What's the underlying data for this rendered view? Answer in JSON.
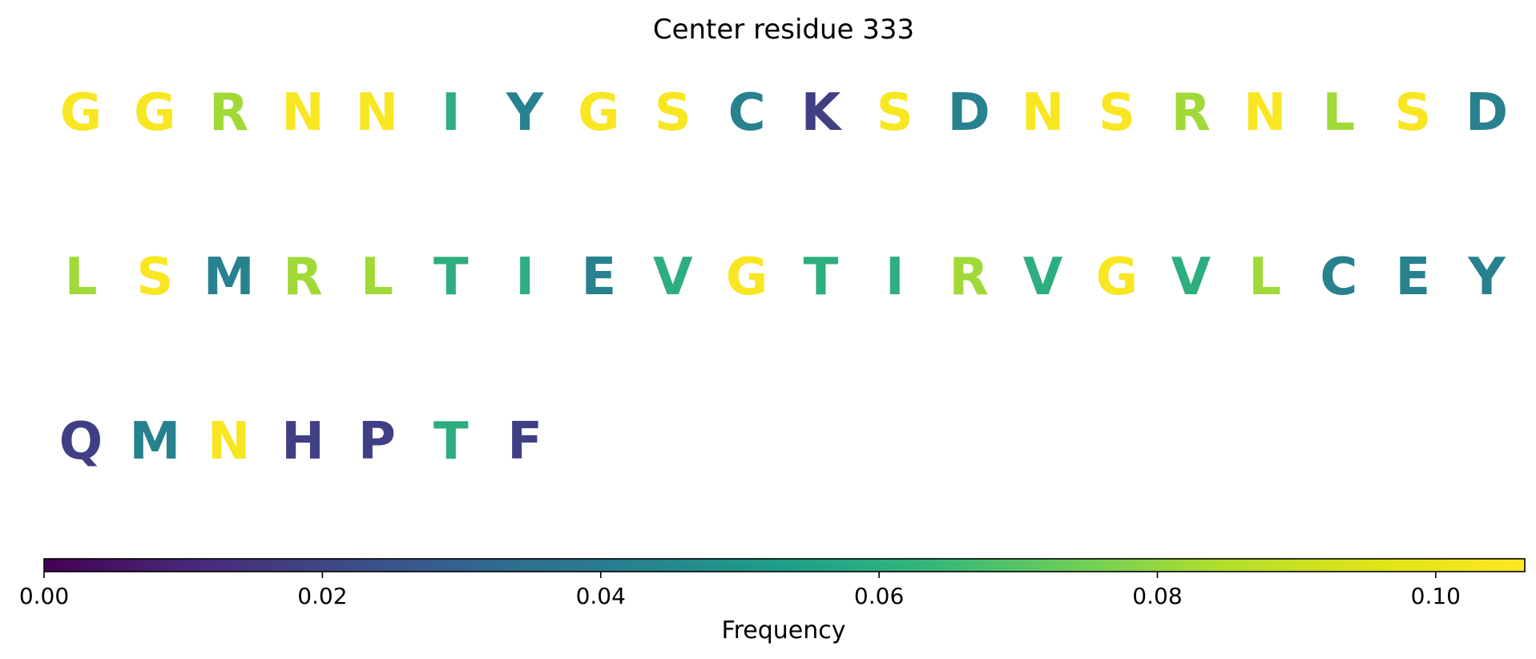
{
  "chart_data": {
    "type": "heatmap",
    "title": "Center residue 333",
    "rows": [
      [
        {
          "letter": "G",
          "value": 0.105
        },
        {
          "letter": "G",
          "value": 0.105
        },
        {
          "letter": "R",
          "value": 0.082
        },
        {
          "letter": "N",
          "value": 0.105
        },
        {
          "letter": "N",
          "value": 0.105
        },
        {
          "letter": "I",
          "value": 0.06
        },
        {
          "letter": "Y",
          "value": 0.042
        },
        {
          "letter": "G",
          "value": 0.105
        },
        {
          "letter": "S",
          "value": 0.105
        },
        {
          "letter": "C",
          "value": 0.042
        },
        {
          "letter": "K",
          "value": 0.018
        },
        {
          "letter": "S",
          "value": 0.105
        },
        {
          "letter": "D",
          "value": 0.042
        },
        {
          "letter": "N",
          "value": 0.105
        },
        {
          "letter": "S",
          "value": 0.105
        },
        {
          "letter": "R",
          "value": 0.082
        },
        {
          "letter": "N",
          "value": 0.105
        },
        {
          "letter": "L",
          "value": 0.082
        },
        {
          "letter": "S",
          "value": 0.105
        },
        {
          "letter": "D",
          "value": 0.042
        }
      ],
      [
        {
          "letter": "L",
          "value": 0.082
        },
        {
          "letter": "S",
          "value": 0.105
        },
        {
          "letter": "M",
          "value": 0.042
        },
        {
          "letter": "R",
          "value": 0.082
        },
        {
          "letter": "L",
          "value": 0.082
        },
        {
          "letter": "T",
          "value": 0.06
        },
        {
          "letter": "I",
          "value": 0.06
        },
        {
          "letter": "E",
          "value": 0.042
        },
        {
          "letter": "V",
          "value": 0.06
        },
        {
          "letter": "G",
          "value": 0.105
        },
        {
          "letter": "T",
          "value": 0.06
        },
        {
          "letter": "I",
          "value": 0.06
        },
        {
          "letter": "R",
          "value": 0.082
        },
        {
          "letter": "V",
          "value": 0.06
        },
        {
          "letter": "G",
          "value": 0.105
        },
        {
          "letter": "V",
          "value": 0.06
        },
        {
          "letter": "L",
          "value": 0.082
        },
        {
          "letter": "C",
          "value": 0.042
        },
        {
          "letter": "E",
          "value": 0.042
        },
        {
          "letter": "Y",
          "value": 0.042
        }
      ],
      [
        {
          "letter": "Q",
          "value": 0.018
        },
        {
          "letter": "M",
          "value": 0.042
        },
        {
          "letter": "N",
          "value": 0.105
        },
        {
          "letter": "H",
          "value": 0.018
        },
        {
          "letter": "P",
          "value": 0.018
        },
        {
          "letter": "T",
          "value": 0.06
        },
        {
          "letter": "F",
          "value": 0.018
        }
      ]
    ],
    "colorbar": {
      "label": "Frequency",
      "range": [
        0,
        0.1064
      ],
      "colormap": "viridis",
      "ticks": [
        0,
        0.02,
        0.04,
        0.06,
        0.08,
        0.1
      ],
      "tick_labels": [
        "0.00",
        "0.02",
        "0.04",
        "0.06",
        "0.08",
        "0.10"
      ],
      "orientation": "horizontal",
      "placement": "bottom"
    }
  }
}
